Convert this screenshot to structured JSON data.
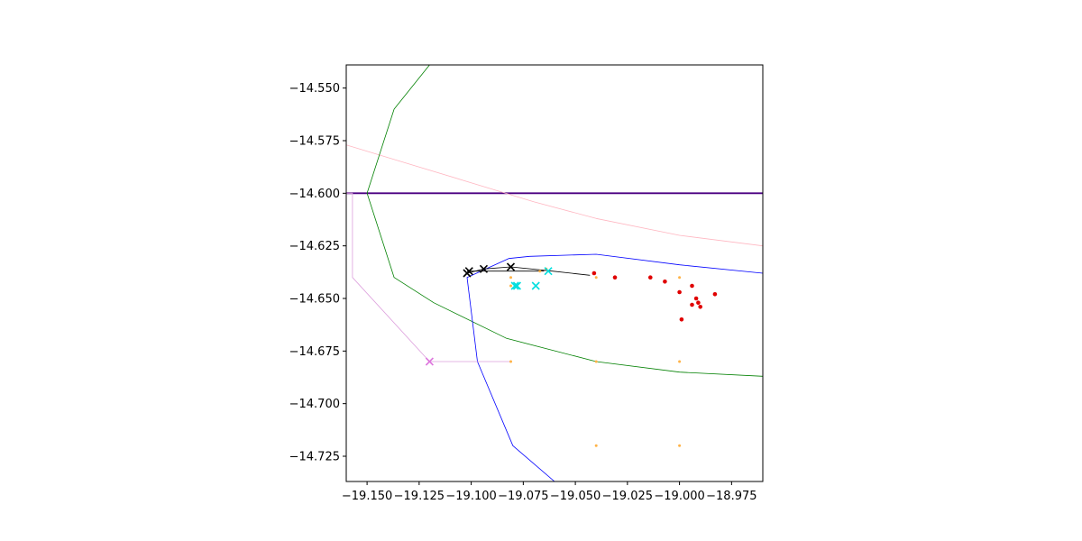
{
  "chart_data": {
    "type": "scatter",
    "title": "",
    "xlabel": "",
    "ylabel": "",
    "xlim": [
      -19.16,
      -18.96
    ],
    "ylim": [
      -14.737,
      -14.539
    ],
    "grid": false,
    "xticks": [
      -19.15,
      -19.125,
      -19.1,
      -19.075,
      -19.05,
      -19.025,
      -19.0,
      -18.975
    ],
    "xtick_labels": [
      "−19.150",
      "−19.125",
      "−19.100",
      "−19.075",
      "−19.050",
      "−19.025",
      "−19.000",
      "−18.975"
    ],
    "yticks": [
      -14.55,
      -14.575,
      -14.6,
      -14.625,
      -14.65,
      -14.675,
      -14.7,
      -14.725
    ],
    "ytick_labels": [
      "−14.550",
      "−14.575",
      "−14.600",
      "−14.625",
      "−14.650",
      "−14.675",
      "−14.700",
      "−14.725"
    ],
    "lines": [
      {
        "color": "#4b0082",
        "width": 1.8,
        "x": [
          -19.16,
          -18.96
        ],
        "y": [
          -14.6,
          -14.6
        ]
      },
      {
        "color": "#ffb6c1",
        "width": 0.8,
        "x": [
          -19.16,
          -19.13,
          -19.1,
          -19.07,
          -19.04,
          -19.0,
          -18.96
        ],
        "y": [
          -14.577,
          -14.586,
          -14.595,
          -14.604,
          -14.612,
          -14.62,
          -14.625
        ]
      },
      {
        "color": "#008000",
        "width": 0.8,
        "x": [
          -19.12,
          -19.137,
          -19.15,
          -19.137,
          -19.118,
          -19.083,
          -19.04,
          -19.0,
          -18.96
        ],
        "y": [
          -14.539,
          -14.56,
          -14.6,
          -14.64,
          -14.652,
          -14.669,
          -14.68,
          -14.685,
          -14.687
        ]
      },
      {
        "color": "#0000ff",
        "width": 0.8,
        "x": [
          -19.06,
          -19.08,
          -19.097,
          -19.102,
          -19.082,
          -19.072,
          -19.04,
          -19.0,
          -18.96
        ],
        "y": [
          -14.737,
          -14.72,
          -14.68,
          -14.64,
          -14.631,
          -14.63,
          -14.629,
          -14.634,
          -14.638
        ]
      },
      {
        "color": "#dda0dd",
        "width": 0.8,
        "x": [
          -19.16,
          -19.157,
          -19.157,
          -19.12,
          -19.081
        ],
        "y": [
          -14.6,
          -14.6,
          -14.64,
          -14.68,
          -14.68
        ]
      },
      {
        "color": "#000000",
        "width": 0.8,
        "x": [
          -19.102,
          -19.094,
          -19.081,
          -19.061,
          -19.043
        ],
        "y": [
          -14.638,
          -14.636,
          -14.635,
          -14.637,
          -14.639
        ]
      },
      {
        "color": "#000000",
        "width": 0.8,
        "x": [
          -19.102,
          -19.081,
          -19.065
        ],
        "y": [
          -14.637,
          -14.637,
          -14.637
        ]
      }
    ],
    "series": [
      {
        "marker": "dot",
        "color": "#e00000",
        "size": 2.3,
        "x": [
          -19.041,
          -19.031,
          -19.014,
          -19.007,
          -19.0,
          -18.994,
          -18.992,
          -18.994,
          -18.991,
          -18.99,
          -18.983,
          -18.999
        ],
        "y": [
          -14.638,
          -14.64,
          -14.64,
          -14.642,
          -14.647,
          -14.644,
          -14.65,
          -14.653,
          -14.652,
          -14.654,
          -14.648,
          -14.66
        ]
      },
      {
        "marker": "dot",
        "color": "#ffb347",
        "size": 1.5,
        "x": [
          -19.081,
          -19.081,
          -19.04,
          -19.0,
          -19.04,
          -19.0,
          -19.081,
          -19.04,
          -19.0,
          -19.067,
          -19.064
        ],
        "y": [
          -14.64,
          -14.644,
          -14.64,
          -14.64,
          -14.68,
          -14.68,
          -14.68,
          -14.72,
          -14.72,
          -14.637,
          -14.636
        ]
      },
      {
        "marker": "x",
        "color": "#00dede",
        "size": 4,
        "x": [
          -19.079,
          -19.078,
          -19.069,
          -19.063
        ],
        "y": [
          -14.644,
          -14.644,
          -14.644,
          -14.637
        ]
      },
      {
        "marker": "x",
        "color": "#dd77dd",
        "size": 4,
        "x": [
          -19.12
        ],
        "y": [
          -14.68
        ]
      },
      {
        "marker": "x",
        "color": "#000000",
        "size": 4,
        "x": [
          -19.102,
          -19.101,
          -19.094,
          -19.081
        ],
        "y": [
          -14.638,
          -14.637,
          -14.636,
          -14.635
        ]
      }
    ]
  }
}
